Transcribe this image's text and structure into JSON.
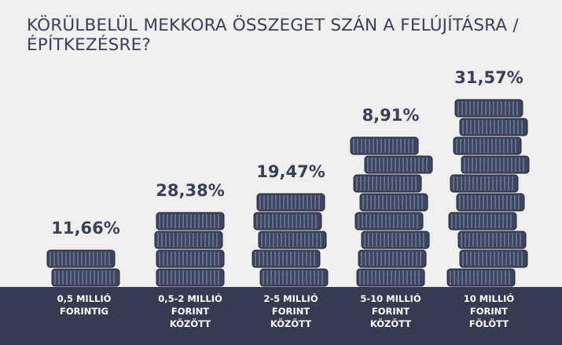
{
  "title_lines": [
    "KÖRÜLBELÜL MEKKORA ÖSSZEGET SZÁN A FELÚJÍTÁSRA /",
    "ÉPÍTKEZÉSRE?"
  ],
  "colors": {
    "background": "#efefef",
    "title": "#3a4157",
    "footer": "#353c52",
    "coin_fill": "#3d4560",
    "coin_ridge": "#8b93a8",
    "coin_outline": "#222838"
  },
  "chart_data": {
    "type": "bar",
    "title": "KÖRÜLBELÜL MEKKORA ÖSSZEGET SZÁN A FELÚJÍTÁSRA / ÉPÍTKEZÉSRE?",
    "categories": [
      [
        "0,5 MILLIÓ",
        "FORINTIG"
      ],
      [
        "0,5-2 MILLIÓ",
        "FORINT",
        "KÖZÖTT"
      ],
      [
        "2-5 MILLIÓ",
        "FORINT",
        "KÖZÖTT"
      ],
      [
        "5-10 MILLIÓ",
        "FORINT",
        "KÖZÖTT"
      ],
      [
        "10 MILLIÓ",
        "FORINT",
        "FÖLÖTT"
      ]
    ],
    "values": [
      11.66,
      28.38,
      19.47,
      8.91,
      31.57
    ],
    "value_labels": [
      "11,66%",
      "28,38%",
      "19,47%",
      "8,91%",
      "31,57%"
    ],
    "coin_counts": [
      2,
      4,
      5,
      8,
      10
    ],
    "coin_offsets": [
      [
        2,
        -4
      ],
      [
        0,
        0,
        -2,
        0
      ],
      [
        4,
        -6,
        2,
        -4,
        0
      ],
      [
        0,
        2,
        6,
        -2,
        4,
        -4,
        10,
        -8
      ],
      [
        -10,
        6,
        4,
        -8,
        2,
        -6,
        8,
        -2,
        6,
        0
      ]
    ],
    "xlabel": "",
    "ylabel": "",
    "unit": "%"
  }
}
